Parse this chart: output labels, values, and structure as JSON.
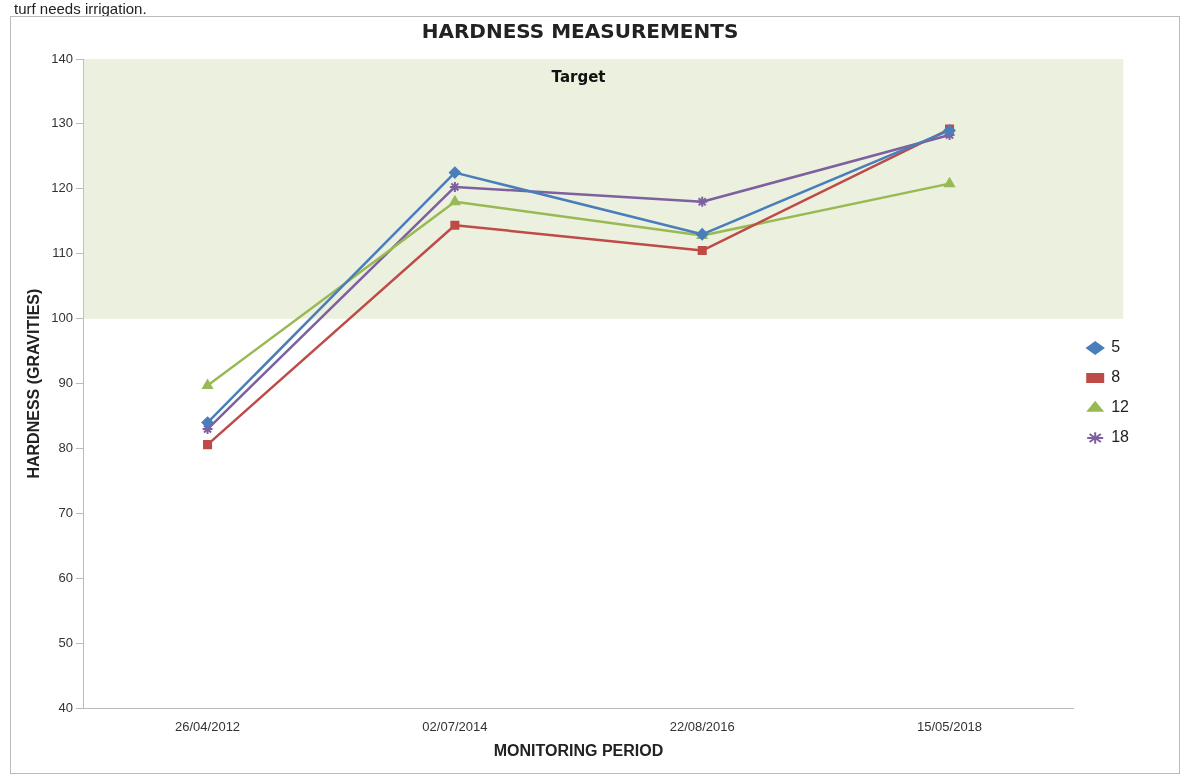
{
  "chart_data": {
    "type": "line",
    "title": "HARDNESS MEASUREMENTS",
    "xlabel": "MONITORING PERIOD",
    "ylabel": "HARDNESS (GRAVITIES)",
    "annotations": [
      "turf needs irrigation."
    ],
    "categories": [
      "26/04/2012",
      "02/07/2014",
      "22/08/2016",
      "15/05/2018"
    ],
    "series": [
      {
        "name": "5",
        "color": "#4a7ebb",
        "marker": "diamond",
        "values": [
          84,
          122.5,
          113,
          129
        ]
      },
      {
        "name": "8",
        "color": "#be4b48",
        "marker": "square",
        "values": [
          80.6,
          114.4,
          110.5,
          129.2
        ]
      },
      {
        "name": "12",
        "color": "#98b954",
        "marker": "triangle",
        "values": [
          89.7,
          118,
          112.8,
          120.8
        ]
      },
      {
        "name": "18",
        "color": "#7d60a0",
        "marker": "cross",
        "values": [
          83,
          120.3,
          118,
          128.3
        ]
      }
    ],
    "ylim": [
      40,
      140
    ],
    "yticks": [
      40,
      50,
      60,
      70,
      80,
      90,
      100,
      110,
      120,
      130,
      140
    ],
    "bands": [
      {
        "axis": "y",
        "from": 100,
        "to": 140,
        "label": "Target",
        "color": "#ebf1de"
      }
    ],
    "grid": false,
    "legend": "right",
    "line_style": "solid"
  }
}
